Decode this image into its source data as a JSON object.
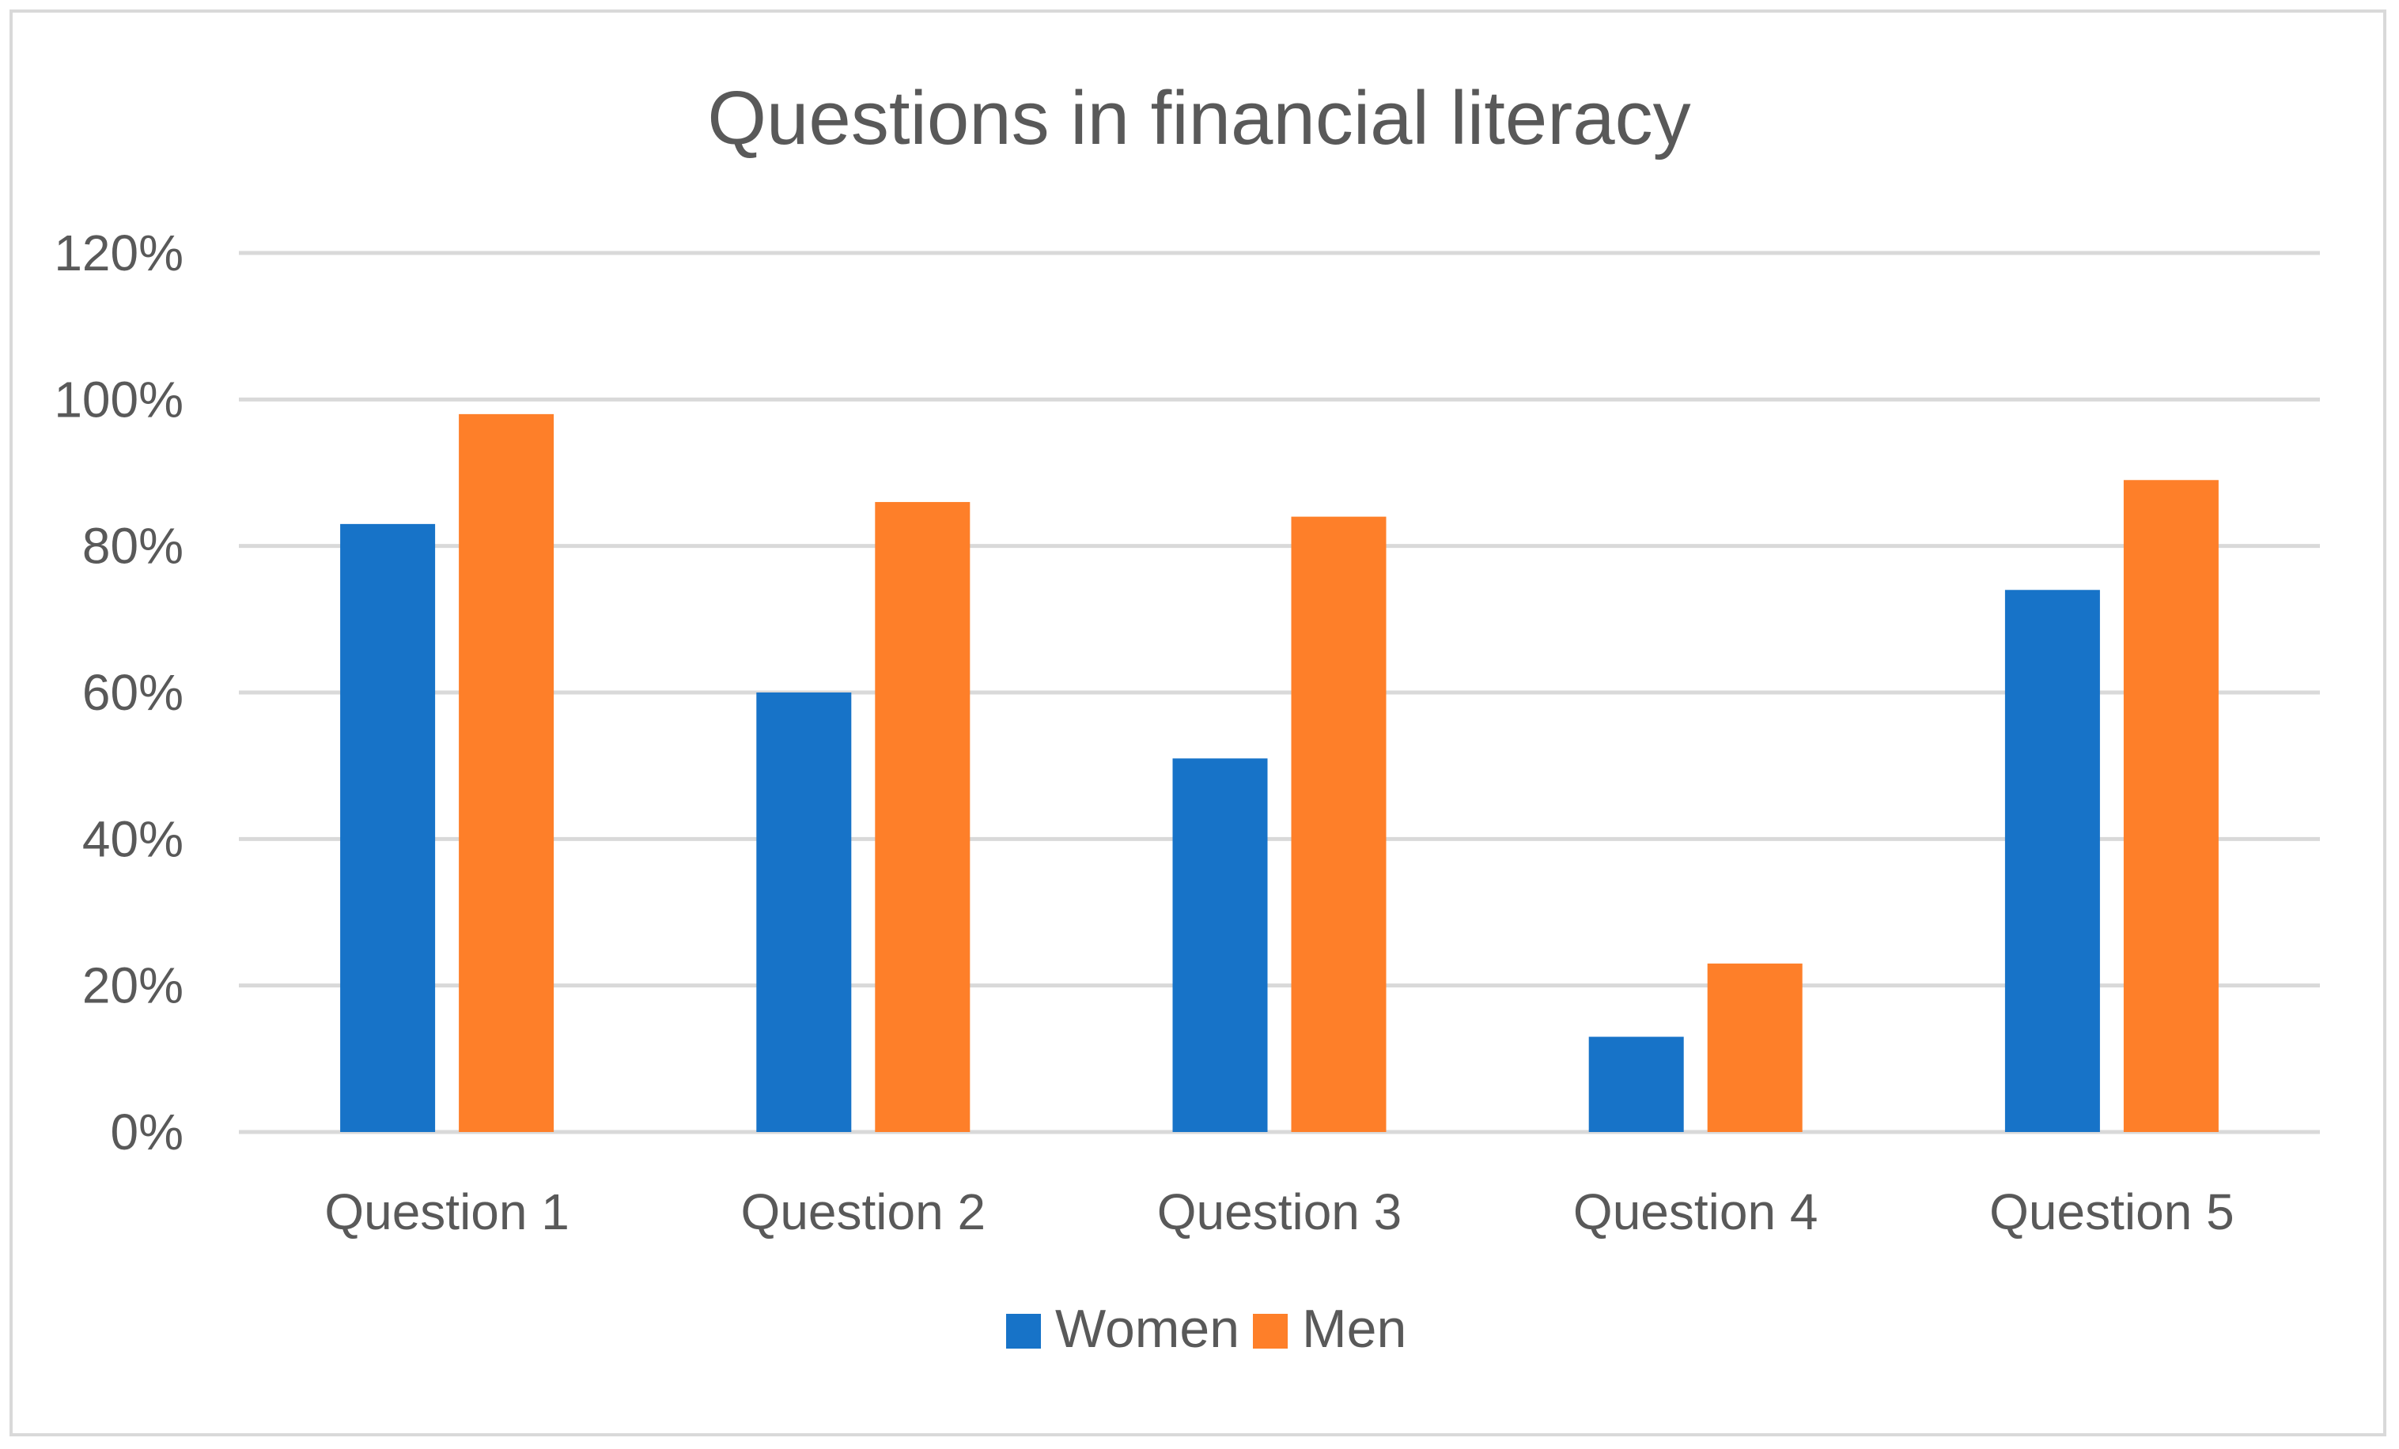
{
  "chart_data": {
    "type": "bar",
    "title": "Questions in financial literacy",
    "xlabel": "",
    "ylabel": "",
    "categories": [
      "Question 1",
      "Question 2",
      "Question 3",
      "Question 4",
      "Question 5"
    ],
    "series": [
      {
        "name": "Women",
        "color": "#1773c8",
        "values": [
          0.83,
          0.6,
          0.51,
          0.13,
          0.74
        ]
      },
      {
        "name": "Men",
        "color": "#fe7f29",
        "values": [
          0.98,
          0.86,
          0.84,
          0.23,
          0.89
        ]
      }
    ],
    "ylim": [
      0,
      1.2
    ],
    "y_ticks": [
      0,
      0.2,
      0.4,
      0.6,
      0.8,
      1.0,
      1.2
    ],
    "y_tick_labels": [
      "0%",
      "20%",
      "40%",
      "60%",
      "80%",
      "100%",
      "120%"
    ],
    "grid": true,
    "legend_position": "bottom-center",
    "gridline_color": "#d9d9d9",
    "axis_text_color": "#595959"
  }
}
